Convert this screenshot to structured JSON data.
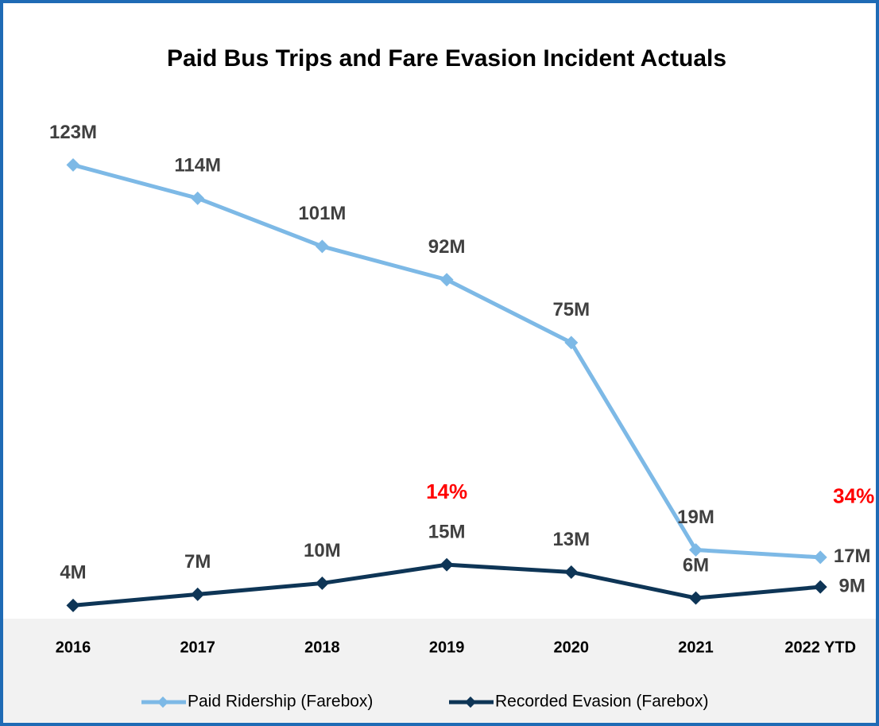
{
  "chart_data": {
    "type": "line",
    "title": "Paid Bus Trips and Fare Evasion Incident Actuals",
    "categories": [
      "2016",
      "2017",
      "2018",
      "2019",
      "2020",
      "2021",
      "2022 YTD"
    ],
    "series": [
      {
        "name": "Paid Ridership (Farebox)",
        "color": "#7db9e6",
        "values": [
          123,
          114,
          101,
          92,
          75,
          19,
          17
        ],
        "value_labels": [
          "123M",
          "114M",
          "101M",
          "92M",
          "75M",
          "19M",
          "17M"
        ]
      },
      {
        "name": "Recorded Evasion (Farebox)",
        "color": "#0e3556",
        "values": [
          4,
          7,
          10,
          15,
          13,
          6,
          9
        ],
        "value_labels": [
          "4M",
          "7M",
          "10M",
          "15M",
          "13M",
          "6M",
          "9M"
        ]
      }
    ],
    "annotations": [
      {
        "text": "14%",
        "category": "2019",
        "color": "#ff0000"
      },
      {
        "text": "34%",
        "category": "2022 YTD",
        "color": "#ff0000"
      }
    ],
    "legend": "bottom"
  }
}
